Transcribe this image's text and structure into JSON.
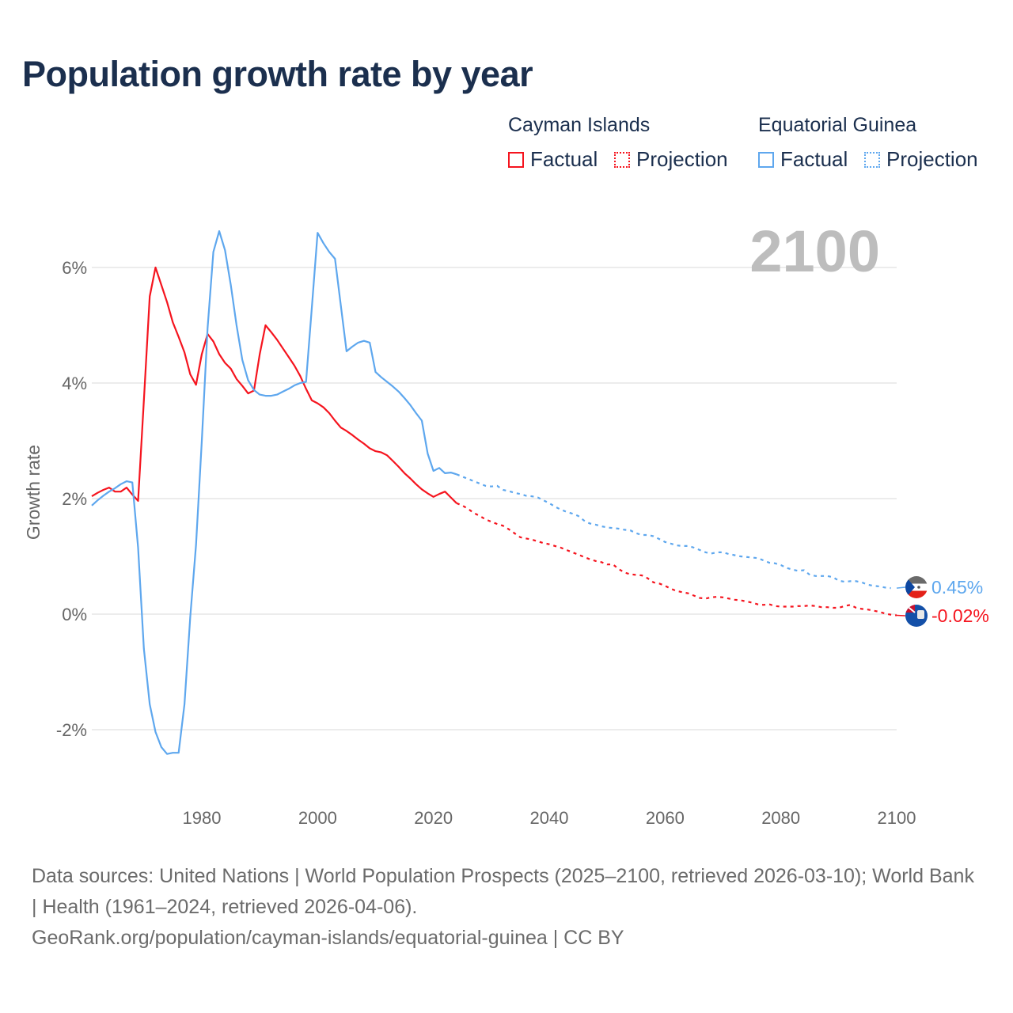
{
  "title": "Population growth rate by year",
  "legend": {
    "groups": [
      {
        "name": "Cayman Islands",
        "factual": "Factual",
        "projection": "Projection",
        "color": "#f5141e"
      },
      {
        "name": "Equatorial Guinea",
        "factual": "Factual",
        "projection": "Projection",
        "color": "#5ea7ee"
      }
    ]
  },
  "footer": {
    "sources": "Data sources: United Nations | World Population Prospects (2025–2100, retrieved 2026-03-10); World Bank | Health (1961–2024, retrieved 2026-04-06).",
    "credit": "GeoRank.org/population/cayman-islands/equatorial-guinea | CC BY"
  },
  "chart_data": {
    "type": "line",
    "title": "Population growth rate by year",
    "xlabel": "",
    "ylabel": "Growth rate",
    "xlim": [
      1961,
      2100
    ],
    "ylim": [
      -2.9,
      7.1
    ],
    "x_ticks": [
      1980,
      2000,
      2020,
      2040,
      2060,
      2080,
      2100
    ],
    "x_tick_labels": [
      "1980",
      "2000",
      "2020",
      "2040",
      "2060",
      "2080",
      "2100"
    ],
    "y_ticks": [
      6,
      4,
      2,
      0,
      -2
    ],
    "y_tick_labels": [
      "6%",
      "4%",
      "2%",
      "0%",
      "-2%"
    ],
    "grid": true,
    "current_year_label": "2100",
    "factual_range": [
      1961,
      2024
    ],
    "projection_range": [
      2024,
      2100
    ],
    "series": [
      {
        "name": "Cayman Islands",
        "color": "#f5141e",
        "end_label": "-0.02%",
        "start_year": 1961,
        "values": [
          2.04,
          2.1,
          2.15,
          2.19,
          2.12,
          2.12,
          2.19,
          2.07,
          1.96,
          3.7,
          5.5,
          6.0,
          5.7,
          5.4,
          5.05,
          4.8,
          4.53,
          4.15,
          3.97,
          4.5,
          4.85,
          4.72,
          4.5,
          4.35,
          4.25,
          4.07,
          3.95,
          3.82,
          3.87,
          4.5,
          5.0,
          4.88,
          4.75,
          4.6,
          4.45,
          4.3,
          4.12,
          3.9,
          3.7,
          3.65,
          3.58,
          3.48,
          3.35,
          3.23,
          3.17,
          3.1,
          3.02,
          2.95,
          2.87,
          2.82,
          2.8,
          2.75,
          2.65,
          2.55,
          2.44,
          2.35,
          2.25,
          2.16,
          2.09,
          2.03,
          2.08,
          2.12,
          2.02,
          1.92,
          1.88,
          1.82,
          1.75,
          1.7,
          1.64,
          1.6,
          1.56,
          1.53,
          1.47,
          1.4,
          1.33,
          1.31,
          1.29,
          1.26,
          1.23,
          1.21,
          1.18,
          1.15,
          1.11,
          1.07,
          1.03,
          0.99,
          0.95,
          0.92,
          0.9,
          0.86,
          0.86,
          0.78,
          0.72,
          0.69,
          0.68,
          0.67,
          0.62,
          0.55,
          0.53,
          0.49,
          0.44,
          0.4,
          0.38,
          0.36,
          0.32,
          0.28,
          0.27,
          0.29,
          0.3,
          0.29,
          0.27,
          0.25,
          0.24,
          0.22,
          0.2,
          0.17,
          0.16,
          0.17,
          0.14,
          0.13,
          0.13,
          0.13,
          0.14,
          0.14,
          0.15,
          0.14,
          0.12,
          0.12,
          0.11,
          0.11,
          0.14,
          0.16,
          0.11,
          0.09,
          0.08,
          0.06,
          0.04,
          0.01,
          -0.01,
          -0.02
        ]
      },
      {
        "name": "Equatorial Guinea",
        "color": "#5ea7ee",
        "end_label": "0.45%",
        "start_year": 1961,
        "values": [
          1.88,
          1.97,
          2.05,
          2.12,
          2.18,
          2.25,
          2.3,
          2.28,
          1.15,
          -0.6,
          -1.56,
          -2.04,
          -2.3,
          -2.42,
          -2.4,
          -2.4,
          -1.56,
          -0.05,
          1.2,
          3.0,
          4.95,
          6.27,
          6.63,
          6.3,
          5.7,
          5.0,
          4.4,
          4.05,
          3.88,
          3.8,
          3.78,
          3.78,
          3.8,
          3.85,
          3.9,
          3.96,
          4.0,
          4.02,
          5.3,
          6.6,
          6.42,
          6.27,
          6.15,
          5.35,
          4.55,
          4.63,
          4.7,
          4.73,
          4.7,
          4.19,
          4.1,
          4.02,
          3.94,
          3.85,
          3.74,
          3.62,
          3.48,
          3.35,
          2.78,
          2.48,
          2.53,
          2.44,
          2.45,
          2.42,
          2.38,
          2.34,
          2.3,
          2.26,
          2.22,
          2.21,
          2.22,
          2.15,
          2.13,
          2.1,
          2.08,
          2.05,
          2.04,
          2.02,
          1.97,
          1.92,
          1.86,
          1.81,
          1.77,
          1.74,
          1.7,
          1.62,
          1.57,
          1.55,
          1.52,
          1.5,
          1.49,
          1.48,
          1.46,
          1.45,
          1.4,
          1.37,
          1.37,
          1.35,
          1.3,
          1.25,
          1.22,
          1.19,
          1.18,
          1.18,
          1.15,
          1.11,
          1.07,
          1.05,
          1.07,
          1.07,
          1.04,
          1.02,
          1.0,
          0.99,
          0.98,
          0.97,
          0.93,
          0.89,
          0.88,
          0.85,
          0.8,
          0.77,
          0.75,
          0.76,
          0.68,
          0.66,
          0.66,
          0.66,
          0.64,
          0.58,
          0.56,
          0.57,
          0.57,
          0.55,
          0.51,
          0.49,
          0.48,
          0.46,
          0.45
        ]
      }
    ]
  }
}
